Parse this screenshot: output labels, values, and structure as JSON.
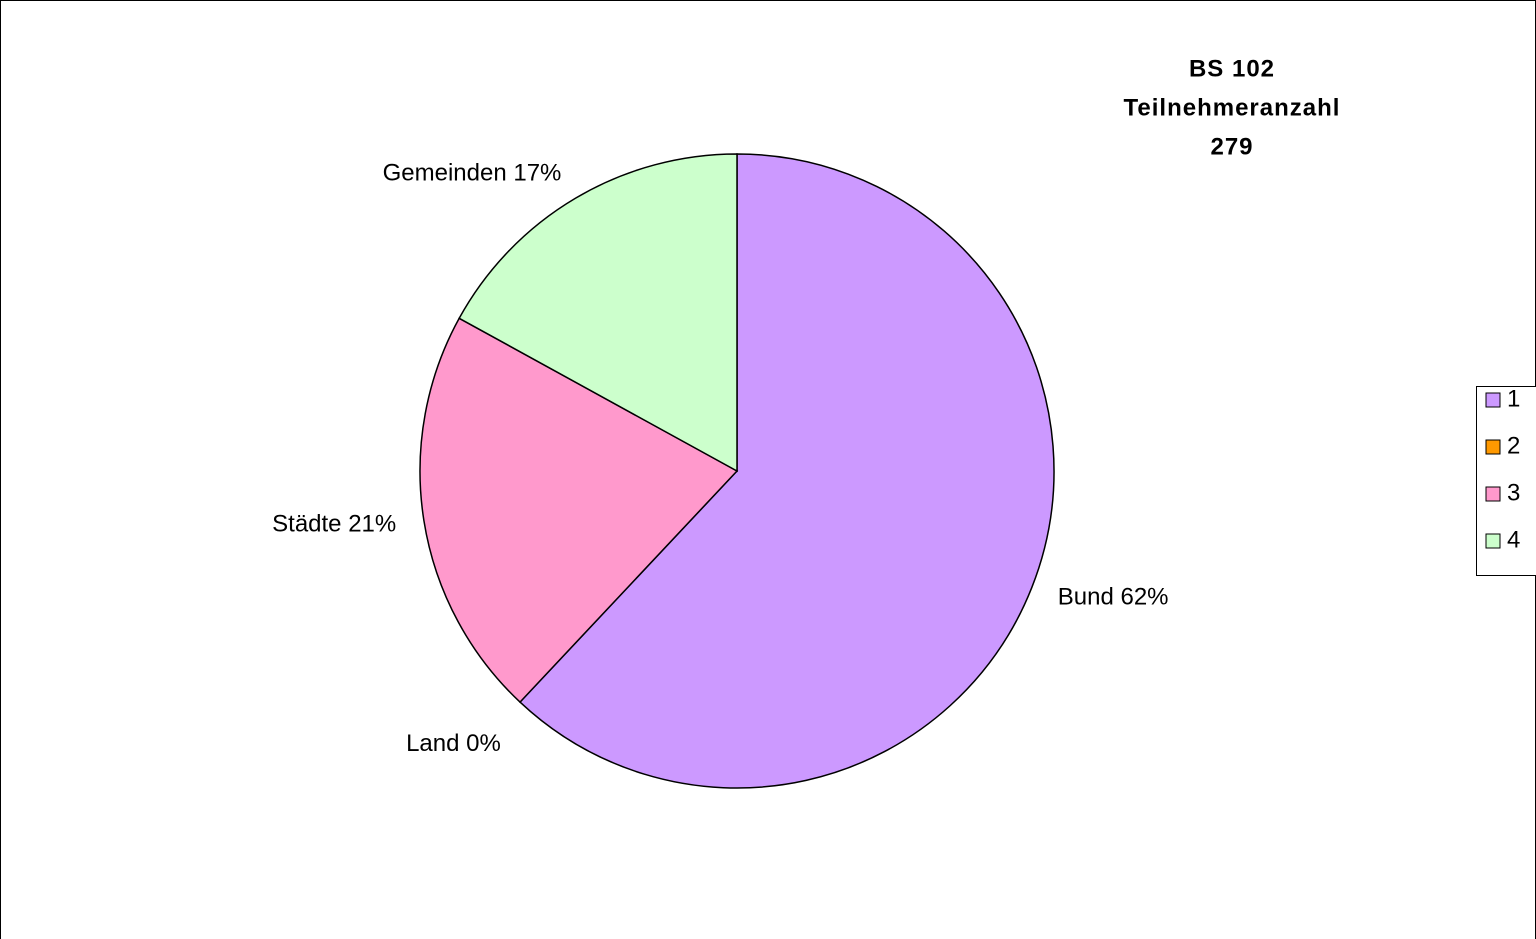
{
  "chart_data": {
    "type": "pie",
    "title": [
      "BS 102",
      "Teilnehmeranzahl",
      "279"
    ],
    "categories": [
      "Bund",
      "Land",
      "Städte",
      "Gemeinden"
    ],
    "values": [
      62,
      0,
      21,
      17
    ],
    "value_labels": [
      "Bund 62%",
      "Land 0%",
      "Städte 21%",
      "Gemeinden 17%"
    ],
    "colors": [
      "#cc99ff",
      "#ff9900",
      "#ff99cc",
      "#ccffcc"
    ],
    "legend": [
      "1",
      "2",
      "3",
      "4"
    ],
    "legend_position": "right"
  }
}
